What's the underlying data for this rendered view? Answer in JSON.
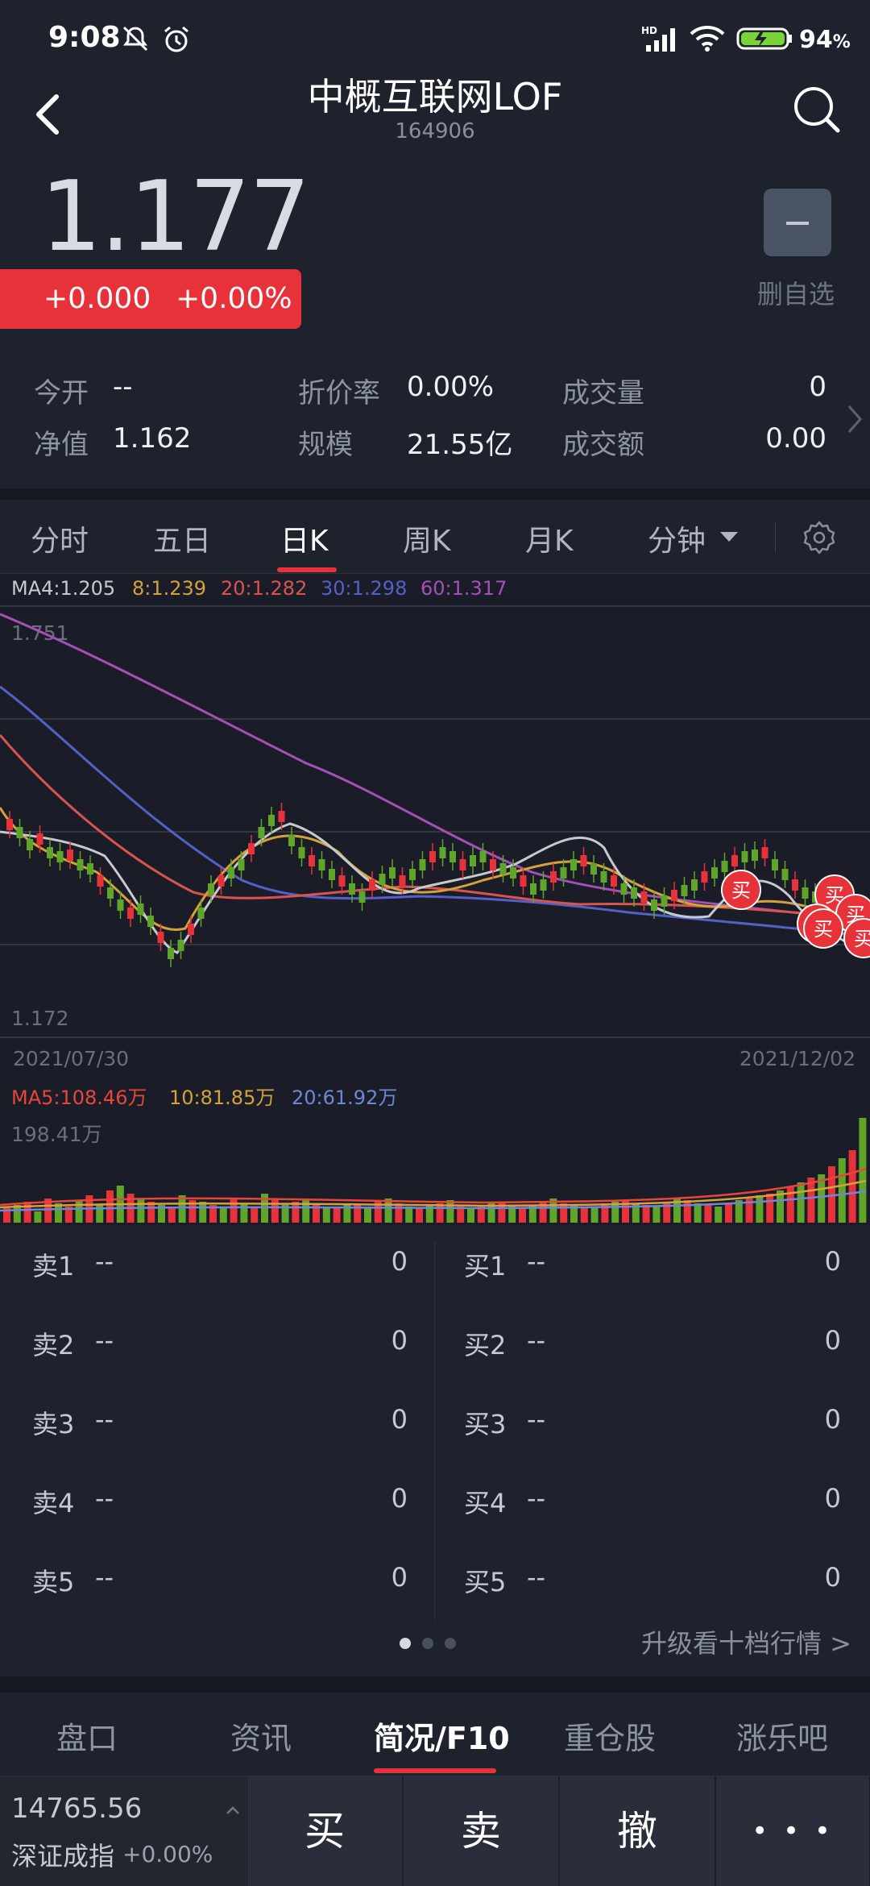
{
  "status": {
    "time": "9:08",
    "battery": "94"
  },
  "header": {
    "title": "中概互联网LOF",
    "code": "164906",
    "back_icon": "back-arrow-icon",
    "search_icon": "search-icon"
  },
  "quote": {
    "price": "1.177",
    "change": "+0.000",
    "change_pct": "+0.00%",
    "fav_label": "删自选"
  },
  "stats": [
    {
      "label": "今开",
      "value": "--"
    },
    {
      "label": "折价率",
      "value": "0.00%"
    },
    {
      "label": "成交量",
      "value": "0"
    },
    {
      "label": "净值",
      "value": "1.162"
    },
    {
      "label": "规模",
      "value": "21.55亿"
    },
    {
      "label": "成交额",
      "value": "0.00"
    }
  ],
  "chart_tabs": [
    "分时",
    "五日",
    "日K",
    "周K",
    "月K",
    "分钟"
  ],
  "active_chart_tab": "日K",
  "chart_data": {
    "type": "candlestick",
    "ma_legend": [
      {
        "text": "MA4:1.205",
        "color": "#c7c9d1"
      },
      {
        "text": "8:1.239",
        "color": "#d4a13a"
      },
      {
        "text": "20:1.282",
        "color": "#d9534f"
      },
      {
        "text": "30:1.298",
        "color": "#5360c8"
      },
      {
        "text": "60:1.317",
        "color": "#a64fb8"
      }
    ],
    "y_top_label": "1.751",
    "y_bottom_label": "1.172",
    "x_start_label": "2021/07/30",
    "x_end_label": "2021/12/02",
    "buy_marker": "买",
    "vol_legend": [
      {
        "text": "MA5:108.46万",
        "color": "#e8453c"
      },
      {
        "text": "10:81.85万",
        "color": "#d4a13a"
      },
      {
        "text": "20:61.92万",
        "color": "#6f86d6"
      }
    ],
    "vol_top_label": "198.41万"
  },
  "orderbook": {
    "asks": [
      {
        "label": "卖1",
        "price": "--",
        "volume": "0"
      },
      {
        "label": "卖2",
        "price": "--",
        "volume": "0"
      },
      {
        "label": "卖3",
        "price": "--",
        "volume": "0"
      },
      {
        "label": "卖4",
        "price": "--",
        "volume": "0"
      },
      {
        "label": "卖5",
        "price": "--",
        "volume": "0"
      }
    ],
    "bids": [
      {
        "label": "买1",
        "price": "--",
        "volume": "0"
      },
      {
        "label": "买2",
        "price": "--",
        "volume": "0"
      },
      {
        "label": "买3",
        "price": "--",
        "volume": "0"
      },
      {
        "label": "买4",
        "price": "--",
        "volume": "0"
      },
      {
        "label": "买5",
        "price": "--",
        "volume": "0"
      }
    ],
    "upgrade_label": "升级看十档行情 >"
  },
  "bottom_tabs": [
    "盘口",
    "资讯",
    "简况/F10",
    "重仓股",
    "涨乐吧"
  ],
  "active_bottom_tab": "简况/F10",
  "index": {
    "value": "14765.56",
    "name": "深证成指",
    "change": "+0.00%"
  },
  "actions": {
    "buy": "买",
    "sell": "卖",
    "cancel": "撤",
    "more": "• • •"
  },
  "colors": {
    "up": "#e8323a",
    "down": "#5fa52a",
    "accent": "#e8323a"
  }
}
